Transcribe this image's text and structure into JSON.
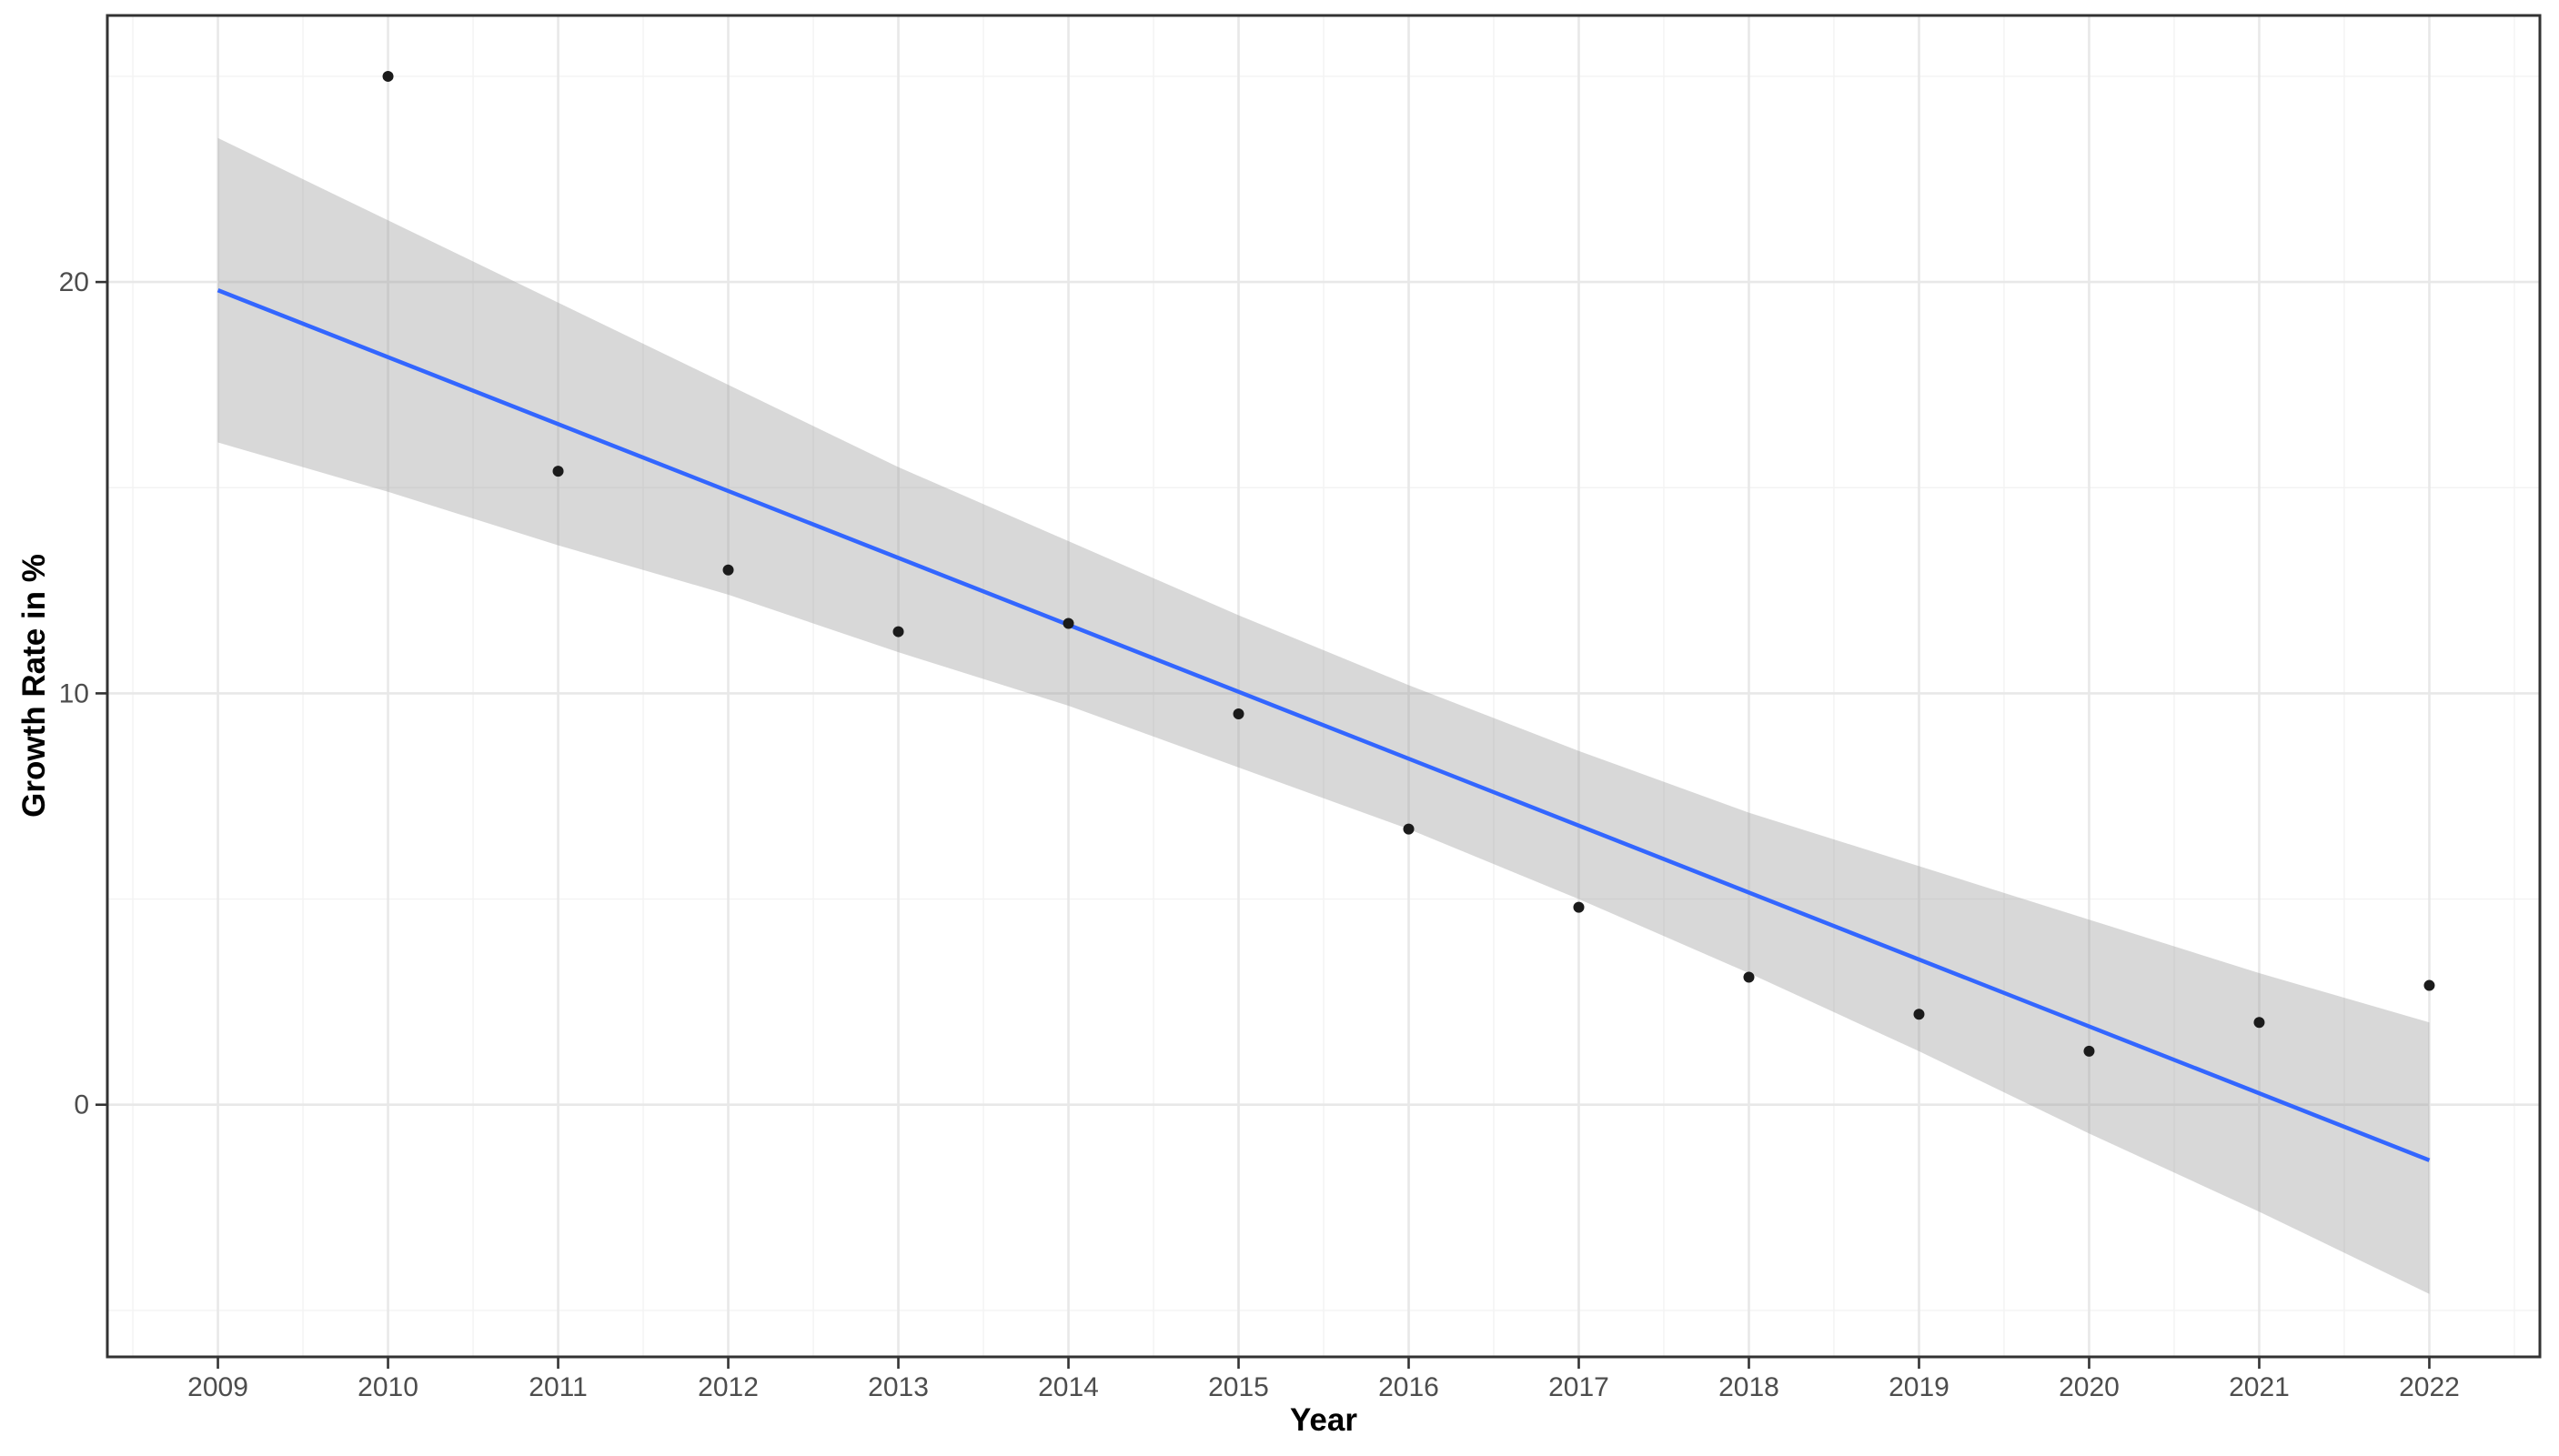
{
  "chart_data": {
    "type": "scatter",
    "title": "",
    "xlabel": "Year",
    "ylabel": "Growth Rate in %",
    "legend": false,
    "grid": true,
    "background": "#ffffff",
    "xlim": [
      2008.35,
      2022.65
    ],
    "ylim": [
      -6.13,
      26.48
    ],
    "x_ticks": [
      "2009",
      "2010",
      "2011",
      "2012",
      "2013",
      "2014",
      "2015",
      "2016",
      "2017",
      "2018",
      "2019",
      "2020",
      "2021",
      "2022"
    ],
    "x_tick_values": [
      2009,
      2010,
      2011,
      2012,
      2013,
      2014,
      2015,
      2016,
      2017,
      2018,
      2019,
      2020,
      2021,
      2022
    ],
    "x_minor_values": [
      2008.5,
      2009.5,
      2010.5,
      2011.5,
      2012.5,
      2013.5,
      2014.5,
      2015.5,
      2016.5,
      2017.5,
      2018.5,
      2019.5,
      2020.5,
      2021.5,
      2022.5
    ],
    "y_ticks": [
      "0",
      "10",
      "20"
    ],
    "y_tick_values": [
      0,
      10,
      20
    ],
    "y_minor_values": [
      -5,
      5,
      15,
      25
    ],
    "points": {
      "x": [
        2010,
        2011,
        2012,
        2013,
        2014,
        2015,
        2016,
        2017,
        2018,
        2019,
        2020,
        2021,
        2022
      ],
      "y": [
        25.0,
        15.4,
        13.0,
        11.5,
        11.7,
        9.5,
        6.7,
        4.8,
        3.1,
        2.2,
        1.3,
        2.0,
        2.9
      ]
    },
    "regression_line": {
      "x": [
        2009,
        2022
      ],
      "y": [
        19.8,
        -1.35
      ]
    },
    "confidence_band": {
      "x": [
        2009,
        2010,
        2011,
        2012,
        2013,
        2014,
        2015,
        2016,
        2017,
        2018,
        2019,
        2020,
        2021,
        2022
      ],
      "upper": [
        23.5,
        21.5,
        19.5,
        17.5,
        15.5,
        13.7,
        11.9,
        10.2,
        8.6,
        7.1,
        5.8,
        4.5,
        3.2,
        2.0
      ],
      "lower": [
        16.1,
        14.9,
        13.6,
        12.4,
        11.0,
        9.7,
        8.2,
        6.7,
        5.0,
        3.2,
        1.3,
        -0.7,
        -2.6,
        -4.6
      ]
    },
    "colors": {
      "point": "#1b1b1b",
      "line": "#3366FF",
      "band_fill": "#999999",
      "band_alpha": 0.38,
      "grid_major": "#e8e8e8",
      "grid_minor": "#f3f3f3",
      "panel_border": "#333333",
      "tick_mark": "#333333",
      "tick_label": "#4d4d4d",
      "axis_title": "#000000"
    }
  }
}
